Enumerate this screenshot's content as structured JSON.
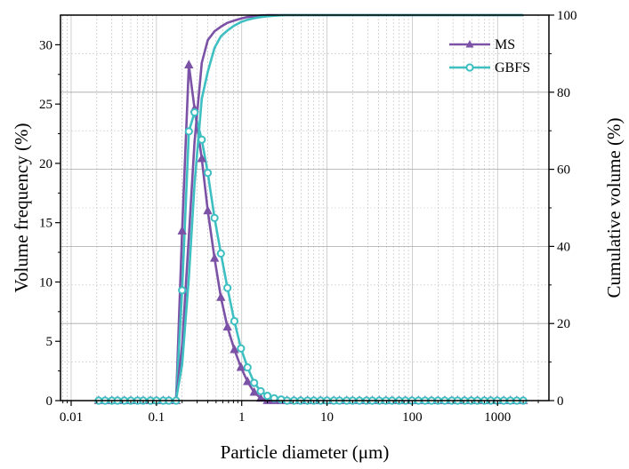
{
  "chart_data": {
    "type": "line",
    "title": "",
    "xlabel": "Particle diameter (μm)",
    "ylabel_left": "Volume frequency (%)",
    "ylabel_right": "Cumulative volume (%)",
    "x_scale": "log",
    "xlim": [
      0.0075,
      4000
    ],
    "ylim_left": [
      0,
      32.5
    ],
    "ylim_right": [
      0,
      100
    ],
    "x_ticks": [
      0.01,
      0.1,
      1,
      10,
      100,
      1000
    ],
    "x_tick_labels": [
      "0.01",
      "0.1",
      "1",
      "10",
      "100",
      "1000"
    ],
    "y_ticks_left": [
      0,
      5,
      10,
      15,
      20,
      25,
      30
    ],
    "y_tick_labels_left": [
      "0",
      "5",
      "10",
      "15",
      "20",
      "25",
      "30"
    ],
    "y_ticks_right": [
      0,
      20,
      40,
      60,
      80,
      100
    ],
    "y_tick_labels_right": [
      "0",
      "20",
      "40",
      "60",
      "80",
      "100"
    ],
    "grid": true,
    "legend_position": "top-right",
    "series": [
      {
        "name": "MS",
        "color": "#7b52a6",
        "marker": "triangle",
        "axis": "left",
        "x": [
          0.021,
          0.025,
          0.03,
          0.035,
          0.042,
          0.05,
          0.06,
          0.07,
          0.085,
          0.1,
          0.12,
          0.14,
          0.17,
          0.2,
          0.24,
          0.28,
          0.34,
          0.4,
          0.48,
          0.57,
          0.68,
          0.82,
          0.98,
          1.17,
          1.4,
          1.67,
          2.0,
          2.4,
          2.9,
          3.4,
          4.1,
          4.9,
          5.9,
          7.0,
          8.4,
          10,
          12,
          14,
          17,
          20,
          24,
          29,
          34,
          41,
          49,
          58,
          70,
          83,
          99,
          118,
          141,
          168,
          200,
          240,
          290,
          340,
          410,
          490,
          580,
          700,
          830,
          990,
          1180,
          1410,
          1680,
          2000
        ],
        "y": [
          0,
          0,
          0,
          0,
          0,
          0,
          0,
          0,
          0,
          0,
          0,
          0,
          0,
          14.3,
          28.3,
          24.6,
          20.4,
          16.0,
          12.0,
          8.7,
          6.2,
          4.3,
          2.8,
          1.6,
          0.7,
          0.2,
          0,
          0,
          0,
          0,
          0,
          0,
          0,
          0,
          0,
          0,
          0,
          0,
          0,
          0,
          0,
          0,
          0,
          0,
          0,
          0,
          0,
          0,
          0,
          0,
          0,
          0,
          0,
          0,
          0,
          0,
          0,
          0,
          0,
          0,
          0,
          0,
          0,
          0,
          0,
          0
        ]
      },
      {
        "name": "GBFS",
        "color": "#3ebfc2",
        "marker": "circle",
        "axis": "left",
        "x": [
          0.021,
          0.025,
          0.03,
          0.035,
          0.042,
          0.05,
          0.06,
          0.07,
          0.085,
          0.1,
          0.12,
          0.14,
          0.17,
          0.2,
          0.24,
          0.28,
          0.34,
          0.4,
          0.48,
          0.57,
          0.68,
          0.82,
          0.98,
          1.17,
          1.4,
          1.67,
          2.0,
          2.4,
          2.9,
          3.4,
          4.1,
          4.9,
          5.9,
          7.0,
          8.4,
          10,
          12,
          14,
          17,
          20,
          24,
          29,
          34,
          41,
          49,
          58,
          70,
          83,
          99,
          118,
          141,
          168,
          200,
          240,
          290,
          340,
          410,
          490,
          580,
          700,
          830,
          990,
          1180,
          1410,
          1680,
          2000
        ],
        "y": [
          0,
          0,
          0,
          0,
          0,
          0,
          0,
          0,
          0,
          0,
          0,
          0,
          0,
          9.3,
          22.7,
          24.3,
          22.0,
          19.2,
          15.4,
          12.4,
          9.5,
          6.7,
          4.4,
          2.8,
          1.5,
          0.8,
          0.4,
          0.2,
          0.1,
          0,
          0,
          0,
          0,
          0,
          0,
          0,
          0,
          0,
          0,
          0,
          0,
          0,
          0,
          0,
          0,
          0,
          0,
          0,
          0,
          0,
          0,
          0,
          0,
          0,
          0,
          0,
          0,
          0,
          0,
          0,
          0,
          0,
          0,
          0,
          0,
          0
        ]
      },
      {
        "name": "MS cumulative",
        "color": "#7b52a6",
        "marker": "none",
        "axis": "right",
        "x": [
          0.021,
          0.1,
          0.15,
          0.17,
          0.2,
          0.24,
          0.28,
          0.34,
          0.4,
          0.48,
          0.57,
          0.68,
          0.82,
          0.98,
          1.17,
          1.4,
          1.67,
          2.0,
          2.4,
          3,
          5,
          10,
          2000
        ],
        "y": [
          0,
          0,
          0,
          0.5,
          14.3,
          42.6,
          67.2,
          87.6,
          93.5,
          95.8,
          97,
          98,
          98.6,
          99.1,
          99.5,
          99.7,
          99.9,
          100,
          100,
          100,
          100,
          100,
          100
        ]
      },
      {
        "name": "GBFS cumulative",
        "color": "#3ebfc2",
        "marker": "none",
        "axis": "right",
        "x": [
          0.021,
          0.1,
          0.15,
          0.17,
          0.2,
          0.24,
          0.28,
          0.34,
          0.4,
          0.48,
          0.57,
          0.68,
          0.82,
          0.98,
          1.17,
          1.4,
          1.67,
          2.0,
          2.4,
          2.9,
          3.4,
          5,
          10,
          2000
        ],
        "y": [
          0,
          0,
          0,
          0.3,
          9.3,
          32.0,
          56.3,
          78.3,
          85.3,
          91.5,
          94.5,
          96.0,
          97.3,
          98.2,
          98.8,
          99.2,
          99.5,
          99.7,
          99.85,
          99.95,
          100,
          100,
          100,
          100
        ]
      }
    ]
  }
}
